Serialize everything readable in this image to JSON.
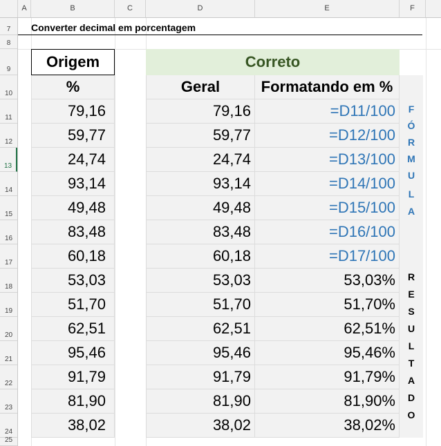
{
  "columns": [
    "A",
    "B",
    "C",
    "D",
    "E",
    "F"
  ],
  "rows": [
    "7",
    "8",
    "9",
    "10",
    "11",
    "12",
    "13",
    "14",
    "15",
    "16",
    "17",
    "18",
    "19",
    "20",
    "21",
    "22",
    "23",
    "24",
    "25"
  ],
  "selected_row": "13",
  "title": "Converter decimal em porcentagem",
  "origem": {
    "header": "Origem",
    "subheader": "%",
    "values": [
      "79,16",
      "59,77",
      "24,74",
      "93,14",
      "49,48",
      "83,48",
      "60,18",
      "53,03",
      "51,70",
      "62,51",
      "95,46",
      "91,79",
      "81,90",
      "38,02"
    ]
  },
  "correto": {
    "header": "Correto",
    "geral_header": "Geral",
    "formatado_header": "Formatando em %",
    "geral": [
      "79,16",
      "59,77",
      "24,74",
      "93,14",
      "49,48",
      "83,48",
      "60,18",
      "53,03",
      "51,70",
      "62,51",
      "95,46",
      "91,79",
      "81,90",
      "38,02"
    ],
    "formatado": [
      "=D11/100",
      "=D12/100",
      "=D13/100",
      "=D14/100",
      "=D15/100",
      "=D16/100",
      "=D17/100",
      "53,03%",
      "51,70%",
      "62,51%",
      "95,46%",
      "91,79%",
      "81,90%",
      "38,02%"
    ]
  },
  "formula_letters": [
    "F",
    "Ó",
    "R",
    "M",
    "U",
    "L",
    "A"
  ],
  "resultado_letters": [
    "R",
    "E",
    "S",
    "U",
    "L",
    "T",
    "A",
    "D",
    "O"
  ],
  "colors": {
    "formula_blue": "#2e75b6",
    "correto_bg": "#e2efda",
    "correto_text": "#375623"
  }
}
